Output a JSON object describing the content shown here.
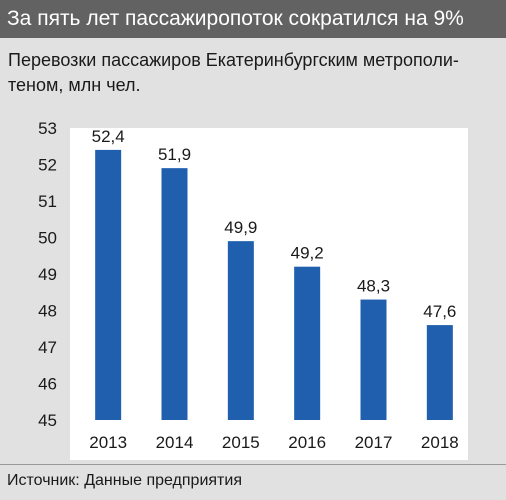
{
  "header": {
    "title": "За пять лет пассажиропоток сократился на 9%"
  },
  "subtitle": "Перевозки пассажиров Екатеринбургским метрополи-теном, млн чел.",
  "source": "Источник: Данные предприятия",
  "colors": {
    "bar": "#1f5fae",
    "header_bg": "#626262",
    "panel_bg": "#e1e1e1",
    "plot_bg": "#ffffff"
  },
  "chart_data": {
    "type": "bar",
    "categories": [
      "2013",
      "2014",
      "2015",
      "2016",
      "2017",
      "2018"
    ],
    "values": [
      52.4,
      51.9,
      49.9,
      49.2,
      48.3,
      47.6
    ],
    "value_labels": [
      "52,4",
      "51,9",
      "49,9",
      "49,2",
      "48,3",
      "47,6"
    ],
    "title": "Перевозки пассажиров Екатеринбургским метрополи-теном, млн чел.",
    "xlabel": "",
    "ylabel": "",
    "ylim": [
      45,
      53
    ],
    "yticks": [
      "45",
      "46",
      "47",
      "48",
      "49",
      "50",
      "51",
      "52",
      "53"
    ],
    "grid": false,
    "legend": "none"
  }
}
